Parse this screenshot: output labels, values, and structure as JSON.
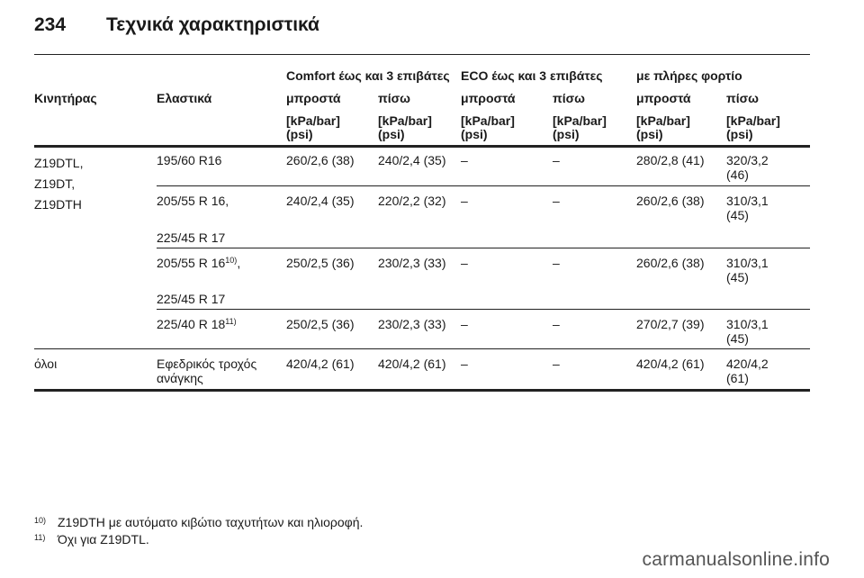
{
  "header": {
    "page_number": "234",
    "title": "Τεχνικά χαρακτηριστικά"
  },
  "table": {
    "group_headers": [
      "Comfort έως και 3 επιβάτες",
      "ECO έως και 3 επιβάτες",
      "με πλήρες φορτίο"
    ],
    "col_engine": "Κινητήρας",
    "col_tyres": "Ελαστικά",
    "col_labels": [
      "μπροστά",
      "πίσω",
      "μπροστά",
      "πίσω",
      "μπροστά",
      "πίσω"
    ],
    "unit_kpa": "[kPa/bar]",
    "unit_psi": "(psi)",
    "engine_group": [
      "Z19DTL,",
      "Z19DT,",
      "Z19DTH"
    ],
    "rows": [
      {
        "tyre": "195/60 R16",
        "comfort_front": "260/2,6 (38)",
        "comfort_rear": "240/2,4 (35)",
        "eco_front": "–",
        "eco_rear": "–",
        "full_front": "280/2,8 (41)",
        "full_rear": "320/3,2 (46)"
      },
      {
        "tyre": "205/55 R 16,",
        "tyre_line2": "225/45 R 17",
        "comfort_front": "240/2,4 (35)",
        "comfort_rear": "220/2,2 (32)",
        "eco_front": "–",
        "eco_rear": "–",
        "full_front": "260/2,6 (38)",
        "full_rear": "310/3,1 (45)"
      },
      {
        "tyre": "205/55 R 16",
        "tyre_sup": "10)",
        "tyre_suffix": ",",
        "tyre_line2": "225/45 R 17",
        "comfort_front": "250/2,5 (36)",
        "comfort_rear": "230/2,3 (33)",
        "eco_front": "–",
        "eco_rear": "–",
        "full_front": "260/2,6 (38)",
        "full_rear": "310/3,1 (45)"
      },
      {
        "tyre": "225/40 R 18",
        "tyre_sup": "11)",
        "comfort_front": "250/2,5 (36)",
        "comfort_rear": "230/2,3 (33)",
        "eco_front": "–",
        "eco_rear": "–",
        "full_front": "270/2,7 (39)",
        "full_rear": "310/3,1 (45)"
      }
    ],
    "all_row": {
      "engine": "όλοι",
      "tyre": "Εφεδρικός τροχός ανάγκης",
      "comfort_front": "420/4,2 (61)",
      "comfort_rear": "420/4,2 (61)",
      "eco_front": "–",
      "eco_rear": "–",
      "full_front": "420/4,2 (61)",
      "full_rear": "420/4,2 (61)"
    }
  },
  "footnotes": [
    {
      "mark": "10)",
      "text": "Z19DTH με αυτόματο κιβώτιο ταχυτήτων και ηλιοροφή."
    },
    {
      "mark": "11)",
      "text": "Όχι για Z19DTL."
    }
  ],
  "watermark": "carmanualsonline.info"
}
